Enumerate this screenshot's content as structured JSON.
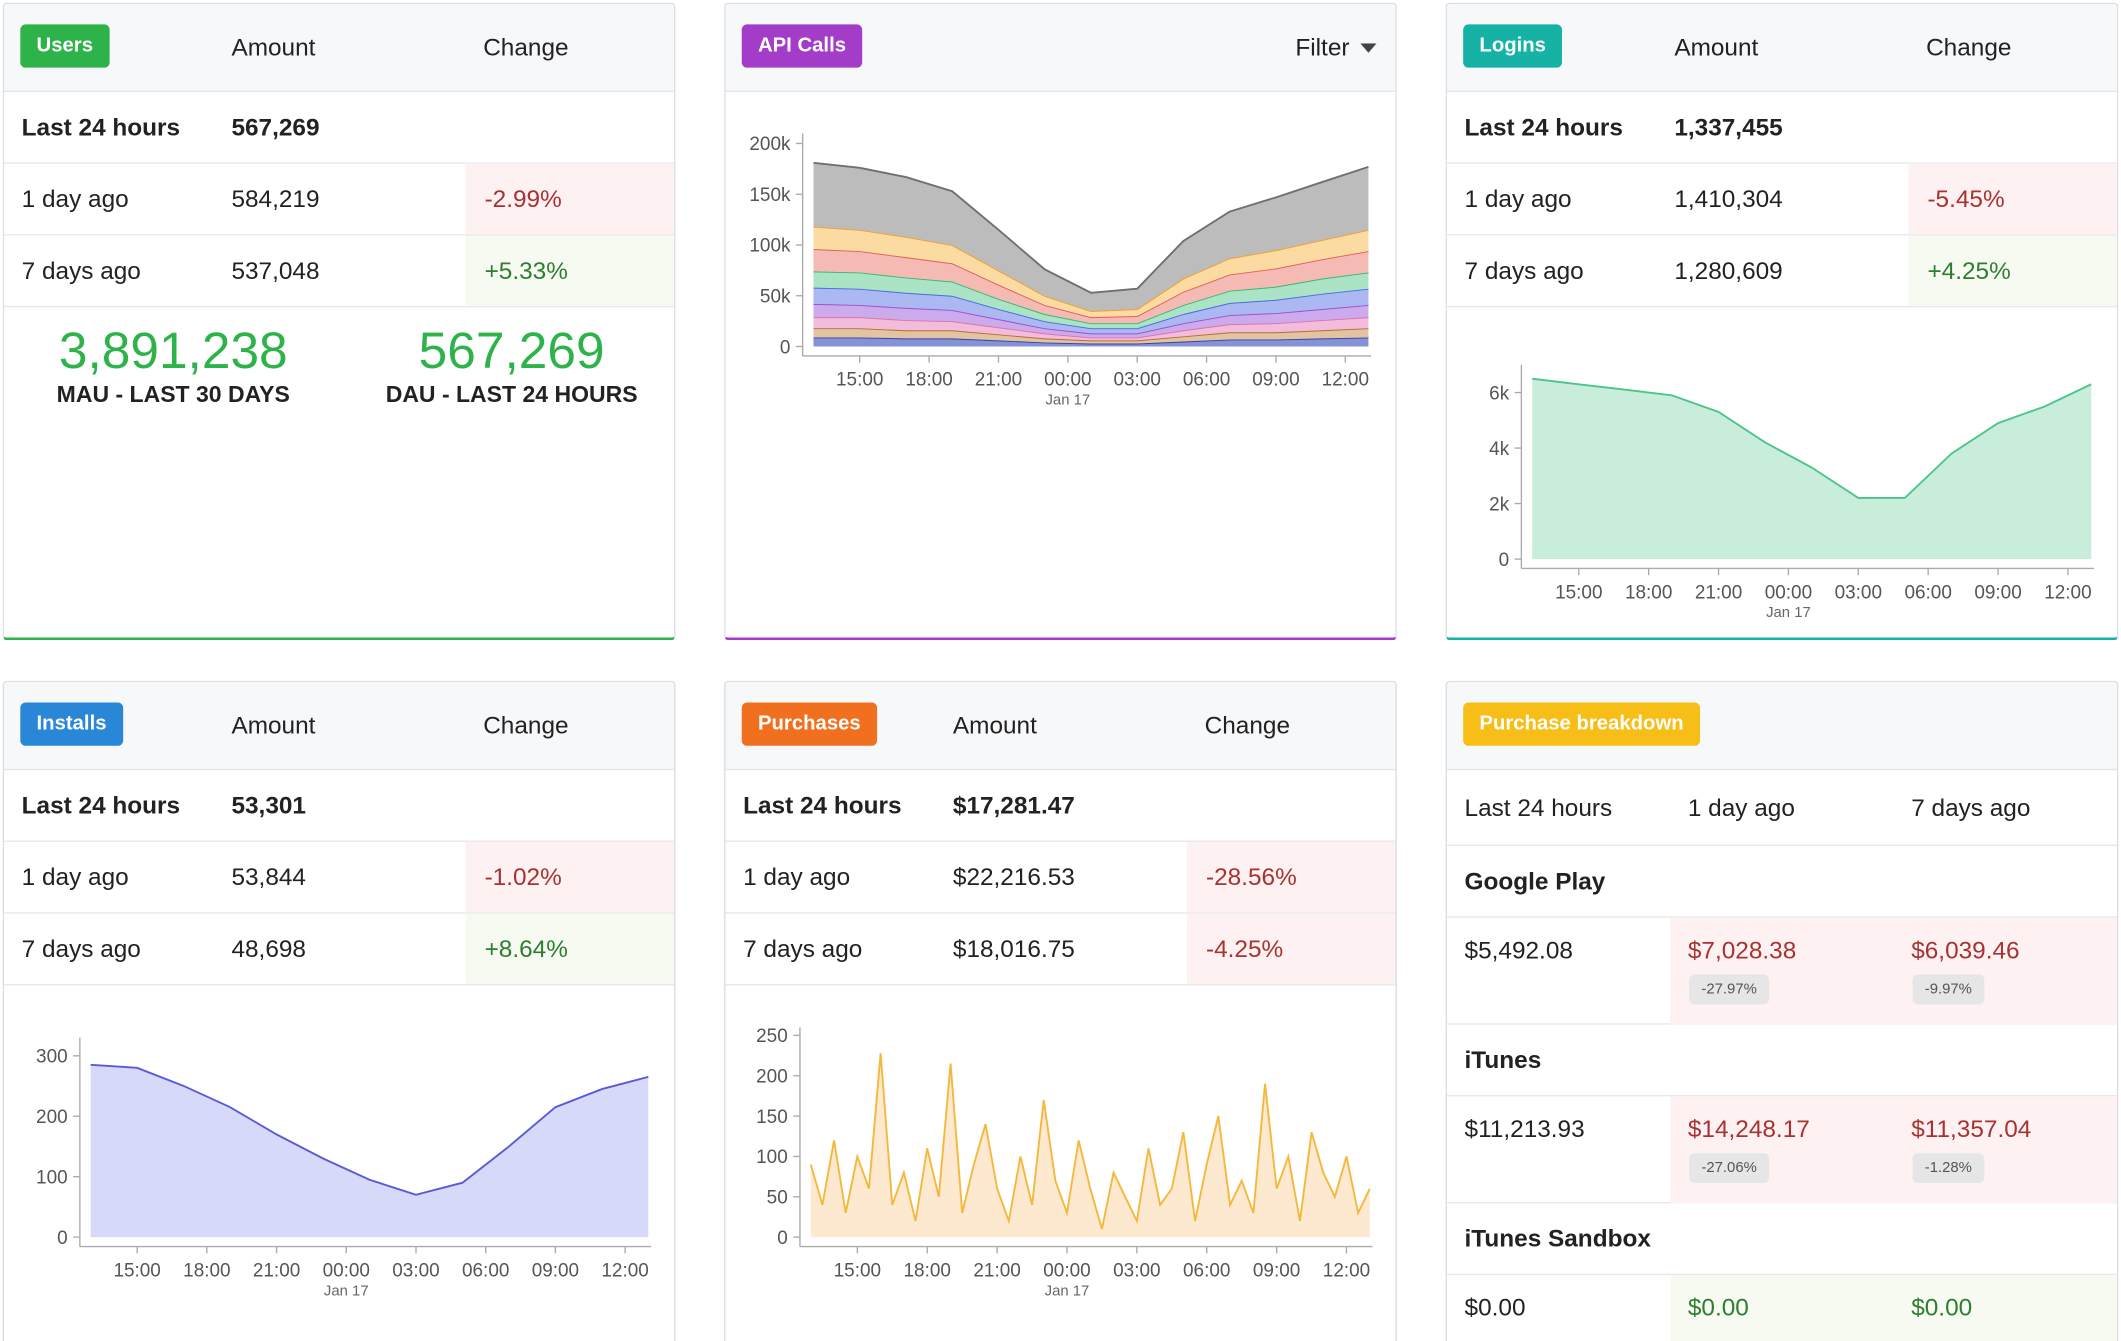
{
  "panels": [
    {
      "badge": "Users",
      "color": "#2db34a",
      "headers": [
        "Amount",
        "Change"
      ],
      "rows": [
        {
          "label": "Last 24 hours",
          "amount": "567,269"
        },
        {
          "label": "1 day ago",
          "amount": "584,219",
          "change": "-2.99%"
        },
        {
          "label": "7 days ago",
          "amount": "537,048",
          "change": "+5.33%"
        }
      ],
      "stats": [
        {
          "value": "3,891,238",
          "label": "MAU - LAST 30 DAYS"
        },
        {
          "value": "567,269",
          "label": "DAU - LAST 24 HOURS"
        }
      ]
    },
    {
      "badge": "API Calls",
      "color": "#a33cc8",
      "filter": "Filter",
      "chart_data": {
        "type": "stacked_area",
        "x": [
          0,
          2,
          4,
          6,
          8,
          10,
          12,
          14,
          16,
          18,
          20,
          22,
          24
        ],
        "xlim": [
          0,
          24
        ],
        "xticks": [
          {
            "value": 2,
            "label": "15:00"
          },
          {
            "value": 5,
            "label": "18:00"
          },
          {
            "value": 8,
            "label": "21:00"
          },
          {
            "value": 11,
            "label": "00:00",
            "sublabel": "Jan 17"
          },
          {
            "value": 14,
            "label": "03:00"
          },
          {
            "value": 17,
            "label": "06:00"
          },
          {
            "value": 20,
            "label": "09:00"
          },
          {
            "value": 23,
            "label": "12:00"
          }
        ],
        "ylim": [
          0,
          210000
        ],
        "yticks": [
          {
            "value": 0,
            "label": "0"
          },
          {
            "value": 50000,
            "label": "50k"
          },
          {
            "value": 100000,
            "label": "100k"
          },
          {
            "value": 150000,
            "label": "150k"
          },
          {
            "value": 200000,
            "label": "200k"
          }
        ],
        "series": [
          {
            "color": "#3344a8",
            "fill": "#8593d6",
            "values": [
              9000,
              9000,
              8000,
              8000,
              6000,
              4000,
              3000,
              3000,
              5000,
              7000,
              7000,
              8000,
              9000
            ]
          },
          {
            "color": "#b07030",
            "fill": "#e3c4a2",
            "values": [
              9000,
              9000,
              8000,
              8000,
              6000,
              4000,
              3000,
              3000,
              5000,
              7000,
              7000,
              8000,
              9000
            ]
          },
          {
            "color": "#e070b0",
            "fill": "#f2bcda",
            "values": [
              11000,
              11000,
              10000,
              9000,
              7000,
              5000,
              3000,
              3000,
              6000,
              8000,
              9000,
              10000,
              11000
            ]
          },
          {
            "color": "#9a50d0",
            "fill": "#cbabeb",
            "values": [
              13000,
              12000,
              12000,
              11000,
              8000,
              5000,
              4000,
              4000,
              7000,
              9000,
              10000,
              11000,
              12000
            ]
          },
          {
            "color": "#4a6ae0",
            "fill": "#abb8f2",
            "values": [
              16000,
              16000,
              15000,
              14000,
              10000,
              7000,
              5000,
              5000,
              9000,
              12000,
              13000,
              15000,
              16000
            ]
          },
          {
            "color": "#3cb676",
            "fill": "#aae4c4",
            "values": [
              16000,
              16000,
              15000,
              14000,
              10000,
              7000,
              5000,
              5000,
              9000,
              12000,
              13000,
              15000,
              16000
            ]
          },
          {
            "color": "#e0605a",
            "fill": "#f5bab4",
            "values": [
              22000,
              21000,
              20000,
              18000,
              14000,
              9000,
              6000,
              7000,
              13000,
              16000,
              18000,
              19000,
              21000
            ]
          },
          {
            "color": "#f0a030",
            "fill": "#fcdba3",
            "values": [
              22000,
              21000,
              20000,
              18000,
              14000,
              9000,
              6000,
              7000,
              13000,
              16000,
              18000,
              19000,
              21000
            ]
          },
          {
            "color": "#707070",
            "fill": "#bcbcbc",
            "values": [
              63000,
              61000,
              59000,
              53000,
              40000,
              26000,
              18000,
              20000,
              37000,
              46000,
              52000,
              57000,
              62000
            ]
          }
        ]
      }
    },
    {
      "badge": "Logins",
      "color": "#16b2a6",
      "headers": [
        "Amount",
        "Change"
      ],
      "rows": [
        {
          "label": "Last 24 hours",
          "amount": "1,337,455"
        },
        {
          "label": "1 day ago",
          "amount": "1,410,304",
          "change": "-5.45%"
        },
        {
          "label": "7 days ago",
          "amount": "1,280,609",
          "change": "+4.25%"
        }
      ],
      "chart_data": {
        "type": "area",
        "x": [
          0,
          2,
          4,
          6,
          8,
          10,
          12,
          14,
          16,
          18,
          20,
          22,
          24
        ],
        "xlim": [
          0,
          24
        ],
        "xticks": [
          {
            "value": 2,
            "label": "15:00"
          },
          {
            "value": 5,
            "label": "18:00"
          },
          {
            "value": 8,
            "label": "21:00"
          },
          {
            "value": 11,
            "label": "00:00",
            "sublabel": "Jan 17"
          },
          {
            "value": 14,
            "label": "03:00"
          },
          {
            "value": 17,
            "label": "06:00"
          },
          {
            "value": 20,
            "label": "09:00"
          },
          {
            "value": 23,
            "label": "12:00"
          }
        ],
        "ylim": [
          0,
          7000
        ],
        "yticks": [
          {
            "value": 0,
            "label": "0"
          },
          {
            "value": 2000,
            "label": "2k"
          },
          {
            "value": 4000,
            "label": "4k"
          },
          {
            "value": 6000,
            "label": "6k"
          }
        ],
        "series": [
          {
            "color": "#4cc48a",
            "fill": "#c8eedb",
            "values": [
              6500,
              6300,
              6100,
              5900,
              5300,
              4200,
              3300,
              2200,
              2200,
              3800,
              4900,
              5500,
              6300
            ]
          }
        ]
      }
    },
    {
      "badge": "Installs",
      "color": "#2a86d6",
      "headers": [
        "Amount",
        "Change"
      ],
      "rows": [
        {
          "label": "Last 24 hours",
          "amount": "53,301"
        },
        {
          "label": "1 day ago",
          "amount": "53,844",
          "change": "-1.02%"
        },
        {
          "label": "7 days ago",
          "amount": "48,698",
          "change": "+8.64%"
        }
      ],
      "chart_data": {
        "type": "area",
        "x": [
          0,
          2,
          4,
          6,
          8,
          10,
          12,
          14,
          16,
          18,
          20,
          22,
          24
        ],
        "xlim": [
          0,
          24
        ],
        "xticks": [
          {
            "value": 2,
            "label": "15:00"
          },
          {
            "value": 5,
            "label": "18:00"
          },
          {
            "value": 8,
            "label": "21:00"
          },
          {
            "value": 11,
            "label": "00:00",
            "sublabel": "Jan 17"
          },
          {
            "value": 14,
            "label": "03:00"
          },
          {
            "value": 17,
            "label": "06:00"
          },
          {
            "value": 20,
            "label": "09:00"
          },
          {
            "value": 23,
            "label": "12:00"
          }
        ],
        "ylim": [
          0,
          330
        ],
        "yticks": [
          0,
          100,
          200,
          300
        ],
        "series": [
          {
            "color": "#5a5ad6",
            "fill": "#d7d9f8",
            "values": [
              285,
              280,
              250,
              215,
              170,
              130,
              95,
              70,
              90,
              150,
              215,
              245,
              265
            ]
          }
        ]
      }
    },
    {
      "badge": "Purchases",
      "color": "#f07020",
      "headers": [
        "Amount",
        "Change"
      ],
      "rows": [
        {
          "label": "Last 24 hours",
          "amount": "$17,281.47"
        },
        {
          "label": "1 day ago",
          "amount": "$22,216.53",
          "change": "-28.56%"
        },
        {
          "label": "7 days ago",
          "amount": "$18,016.75",
          "change": "-4.25%"
        }
      ],
      "chart_data": {
        "type": "area",
        "x": [
          0,
          0.5,
          1,
          1.5,
          2,
          2.5,
          3,
          3.5,
          4,
          4.5,
          5,
          5.5,
          6,
          6.5,
          7,
          7.5,
          8,
          8.5,
          9,
          9.5,
          10,
          10.5,
          11,
          11.5,
          12,
          12.5,
          13,
          13.5,
          14,
          14.5,
          15,
          15.5,
          16,
          16.5,
          17,
          17.5,
          18,
          18.5,
          19,
          19.5,
          20,
          20.5,
          21,
          21.5,
          22,
          22.5,
          23,
          23.5,
          24
        ],
        "xlim": [
          0,
          24
        ],
        "xticks": [
          {
            "value": 2,
            "label": "15:00"
          },
          {
            "value": 5,
            "label": "18:00"
          },
          {
            "value": 8,
            "label": "21:00"
          },
          {
            "value": 11,
            "label": "00:00",
            "sublabel": "Jan 17"
          },
          {
            "value": 14,
            "label": "03:00"
          },
          {
            "value": 17,
            "label": "06:00"
          },
          {
            "value": 20,
            "label": "09:00"
          },
          {
            "value": 23,
            "label": "12:00"
          }
        ],
        "ylim": [
          0,
          260
        ],
        "yticks": [
          0,
          50,
          100,
          150,
          200,
          250
        ],
        "series": [
          {
            "color": "#f5b83c",
            "fill": "#fde9cf",
            "values": [
              90,
              40,
              120,
              30,
              100,
              60,
              228,
              40,
              80,
              20,
              110,
              50,
              215,
              30,
              90,
              140,
              60,
              20,
              100,
              40,
              170,
              70,
              30,
              120,
              60,
              10,
              80,
              50,
              20,
              110,
              40,
              60,
              130,
              20,
              90,
              150,
              40,
              70,
              30,
              190,
              60,
              100,
              20,
              130,
              80,
              50,
              100,
              30,
              60
            ]
          }
        ]
      }
    },
    {
      "badge": "Purchase breakdown",
      "color": "#f6be17",
      "columns": [
        "Last 24 hours",
        "1 day ago",
        "7 days ago"
      ],
      "sections": [
        {
          "name": "Google Play",
          "current": "$5,492.08",
          "previous": [
            {
              "value": "$7,028.38",
              "change": "-27.97%"
            },
            {
              "value": "$6,039.46",
              "change": "-9.97%"
            }
          ]
        },
        {
          "name": "iTunes",
          "current": "$11,213.93",
          "previous": [
            {
              "value": "$14,248.17",
              "change": "-27.06%"
            },
            {
              "value": "$11,357.04",
              "change": "-1.28%"
            }
          ]
        },
        {
          "name": "iTunes Sandbox",
          "current": "$0.00",
          "previous": [
            {
              "value": "$0.00"
            },
            {
              "value": "$0.00"
            }
          ]
        }
      ]
    }
  ]
}
